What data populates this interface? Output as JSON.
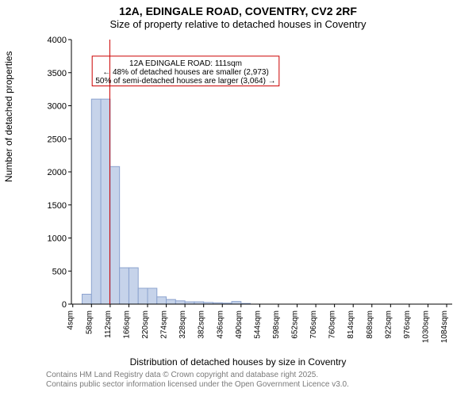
{
  "title": {
    "main": "12A, EDINGALE ROAD, COVENTRY, CV2 2RF",
    "sub": "Size of property relative to detached houses in Coventry"
  },
  "ylabel": "Number of detached properties",
  "xlabel": "Distribution of detached houses by size in Coventry",
  "footer": {
    "line1": "Contains HM Land Registry data © Crown copyright and database right 2025.",
    "line2": "Contains public sector information licensed under the Open Government Licence v3.0."
  },
  "chart": {
    "type": "histogram",
    "plot_bg": "#ffffff",
    "axis_color": "#000000",
    "bar_fill": "#c6d3ea",
    "bar_stroke": "#8ca3cf",
    "ann_border": "#cc0000",
    "ann_bg": "#ffffff",
    "marker_line_color": "#cc0000",
    "xlim": [
      0,
      1100
    ],
    "ylim": [
      0,
      4000
    ],
    "yticks": [
      0,
      500,
      1000,
      1500,
      2000,
      2500,
      3000,
      3500,
      4000
    ],
    "xticks": [
      4,
      58,
      112,
      166,
      220,
      274,
      328,
      382,
      436,
      490,
      544,
      598,
      652,
      706,
      760,
      814,
      868,
      922,
      976,
      1030,
      1084
    ],
    "xtick_suffix": "sqm",
    "bar_width_sqm": 27,
    "bars": [
      {
        "x": 31,
        "y": 150
      },
      {
        "x": 58,
        "y": 3100
      },
      {
        "x": 85,
        "y": 3100
      },
      {
        "x": 112,
        "y": 2080
      },
      {
        "x": 139,
        "y": 550
      },
      {
        "x": 166,
        "y": 550
      },
      {
        "x": 193,
        "y": 240
      },
      {
        "x": 220,
        "y": 240
      },
      {
        "x": 247,
        "y": 110
      },
      {
        "x": 274,
        "y": 70
      },
      {
        "x": 301,
        "y": 50
      },
      {
        "x": 328,
        "y": 35
      },
      {
        "x": 355,
        "y": 35
      },
      {
        "x": 382,
        "y": 25
      },
      {
        "x": 409,
        "y": 20
      },
      {
        "x": 436,
        "y": 15
      },
      {
        "x": 463,
        "y": 40
      },
      {
        "x": 490,
        "y": 10
      }
    ],
    "marker_x": 111,
    "annotation": {
      "line1": "12A EDINGALE ROAD: 111sqm",
      "line2": "← 48% of detached houses are smaller (2,973)",
      "line3": "50% of semi-detached houses are larger (3,064) →"
    }
  }
}
